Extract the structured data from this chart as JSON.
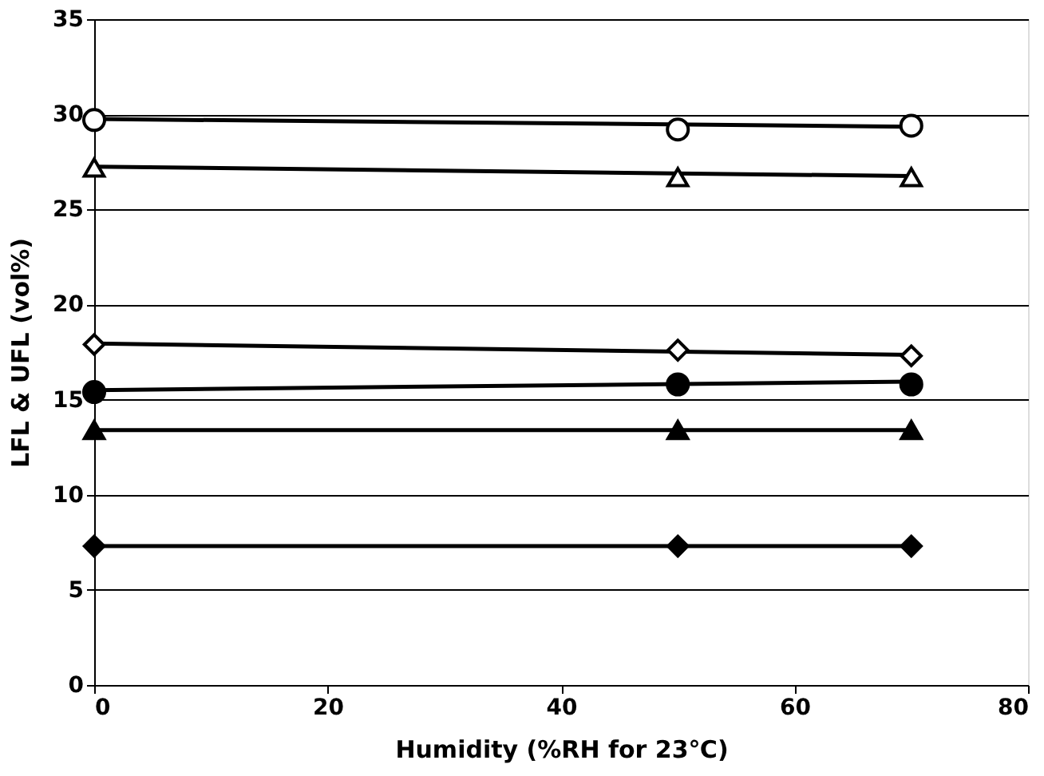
{
  "chart_data": {
    "type": "scatter",
    "xlabel": "Humidity (%RH for 23℃)",
    "ylabel": "LFL & UFL (vol%)",
    "xlim": [
      0,
      80
    ],
    "xticks": [
      0,
      20,
      40,
      60,
      80
    ],
    "ylim": [
      0,
      35
    ],
    "yticks": [
      0,
      5,
      10,
      15,
      20,
      25,
      30,
      35
    ],
    "grid": "y",
    "series": [
      {
        "color": "#ffffff",
        "marker": "circle",
        "x": [
          0,
          50,
          70
        ],
        "values": [
          29.7,
          29.2,
          29.4
        ]
      },
      {
        "color": "#ffffff",
        "marker": "triangle",
        "x": [
          0,
          50,
          70
        ],
        "values": [
          27.2,
          26.7,
          26.7
        ]
      },
      {
        "color": "#ffffff",
        "marker": "diamond",
        "x": [
          0,
          50,
          70
        ],
        "values": [
          17.9,
          17.6,
          17.3
        ]
      },
      {
        "color": "#000000",
        "marker": "circle",
        "x": [
          0,
          50,
          70
        ],
        "values": [
          15.4,
          15.8,
          15.8
        ]
      },
      {
        "color": "#000000",
        "marker": "triangle",
        "x": [
          0,
          50,
          70
        ],
        "values": [
          13.4,
          13.4,
          13.4
        ]
      },
      {
        "color": "#000000",
        "marker": "diamond",
        "x": [
          0,
          50,
          70
        ],
        "values": [
          7.3,
          7.3,
          7.3
        ]
      },
      {
        "type": "line",
        "color": "#000000",
        "x": [
          0,
          70
        ],
        "values": [
          29.75,
          29.35
        ]
      },
      {
        "type": "line",
        "color": "#000000",
        "x": [
          0,
          70
        ],
        "values": [
          27.25,
          26.75
        ]
      },
      {
        "type": "line",
        "color": "#000000",
        "x": [
          0,
          70
        ],
        "values": [
          17.95,
          17.35
        ]
      },
      {
        "type": "line",
        "color": "#000000",
        "x": [
          0,
          70
        ],
        "values": [
          15.5,
          15.95
        ]
      },
      {
        "type": "line",
        "color": "#000000",
        "x": [
          0,
          70
        ],
        "values": [
          13.4,
          13.4
        ]
      },
      {
        "type": "line",
        "color": "#000000",
        "x": [
          0,
          70
        ],
        "values": [
          7.3,
          7.3
        ]
      }
    ]
  }
}
